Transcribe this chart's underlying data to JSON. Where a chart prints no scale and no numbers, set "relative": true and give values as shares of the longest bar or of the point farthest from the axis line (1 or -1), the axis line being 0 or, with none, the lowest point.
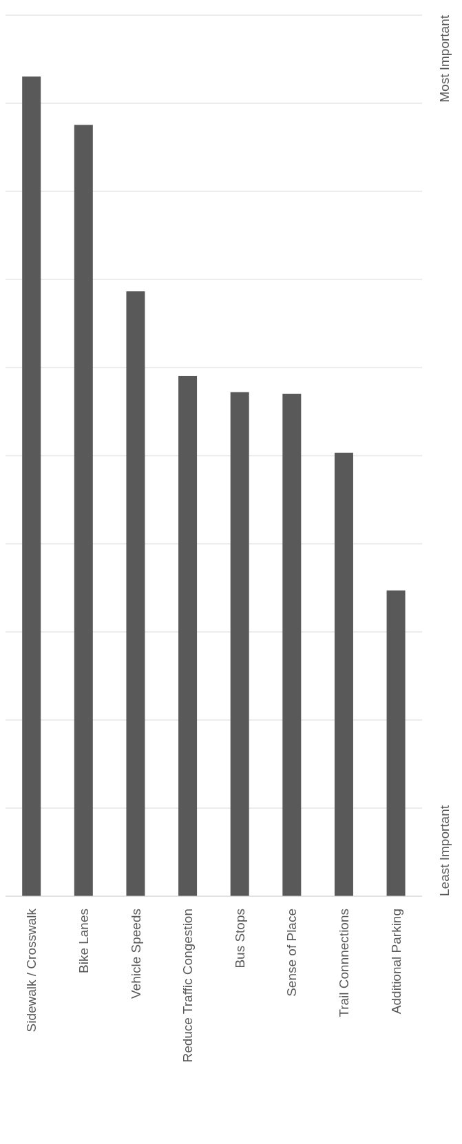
{
  "chart_data": {
    "type": "bar",
    "relative": true,
    "categories": [
      "Sidewalk / Crosswalk",
      "Bike Lanes",
      "Vehicle Speeds",
      "Reduce Traffic Congestion",
      "Bus Stops",
      "Sense of Place",
      "Trail Connnections",
      "Additional Parking"
    ],
    "values": [
      1,
      0.941,
      0.738,
      0.635,
      0.615,
      0.613,
      0.541,
      0.373
    ],
    "color": "#595959",
    "grid": "y",
    "annotations": [
      "Most Important",
      "Least Important"
    ]
  }
}
